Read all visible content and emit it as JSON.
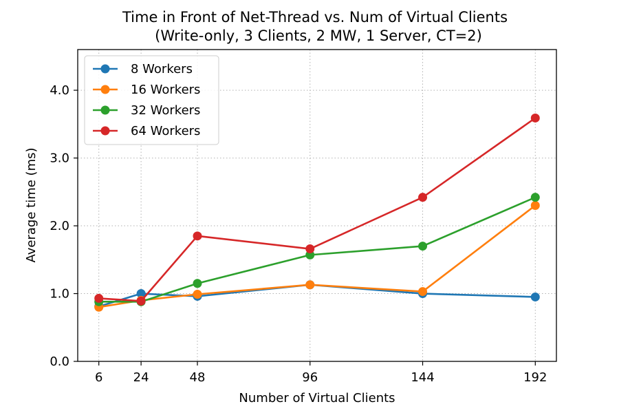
{
  "chart_data": {
    "type": "line",
    "title_line1": "Time in Front of Net-Thread vs. Num of Virtual Clients",
    "title_line2": "(Write-only, 3 Clients, 2 MW, 1 Server, CT=2)",
    "xlabel": "Number of Virtual Clients",
    "ylabel": "Average time (ms)",
    "x": [
      6,
      24,
      48,
      96,
      144,
      192
    ],
    "x_tick_labels": [
      "6",
      "24",
      "48",
      "96",
      "144",
      "192"
    ],
    "y_ticks": [
      0.0,
      1.0,
      2.0,
      3.0,
      4.0
    ],
    "y_tick_labels": [
      "0.0",
      "1.0",
      "2.0",
      "3.0",
      "4.0"
    ],
    "xlim": [
      -3,
      201
    ],
    "ylim": [
      0,
      4.6
    ],
    "grid": true,
    "legend_position": "top-left",
    "series": [
      {
        "name": "8 Workers",
        "color": "#1f77b4",
        "values": [
          0.81,
          1.0,
          0.96,
          1.13,
          1.0,
          0.95
        ]
      },
      {
        "name": "16 Workers",
        "color": "#ff7f0e",
        "values": [
          0.8,
          0.9,
          0.99,
          1.13,
          1.03,
          2.3
        ]
      },
      {
        "name": "32 Workers",
        "color": "#2ca02c",
        "values": [
          0.88,
          0.88,
          1.15,
          1.57,
          1.7,
          2.42
        ]
      },
      {
        "name": "64 Workers",
        "color": "#d62728",
        "values": [
          0.93,
          0.89,
          1.85,
          1.66,
          2.42,
          3.59
        ]
      }
    ]
  }
}
